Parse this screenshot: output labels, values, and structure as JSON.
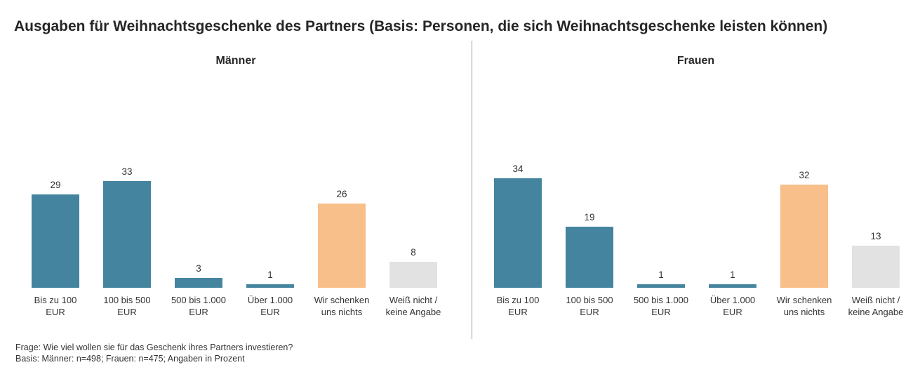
{
  "title": "Ausgaben für Weihnachtsgeschenke des Partners (Basis: Personen, die sich Weihnachtsgeschenke leisten können)",
  "footer": {
    "line1": "Frage: Wie viel wollen sie für das Geschenk ihres Partners investieren?",
    "line2": "Basis: Männer: n=498; Frauen: n=475; Angaben in Prozent"
  },
  "colors": {
    "bar_teal": "#44849E",
    "bar_orange": "#F8BF8A",
    "bar_gray": "#E2E2E2",
    "text": "#333333",
    "title_text": "#262626",
    "divider": "#9c9c9c"
  },
  "chart_data": {
    "type": "bar",
    "categories": [
      "Bis zu 100 EUR",
      "100 bis 500 EUR",
      "500 bis 1.000 EUR",
      "Über 1.000 EUR",
      "Wir schenken uns nichts",
      "Weiß nicht / keine Angabe"
    ],
    "category_labels": [
      "Bis zu 100\nEUR",
      "100 bis 500\nEUR",
      "500 bis 1.000\nEUR",
      "Über 1.000\nEUR",
      "Wir schenken\nuns nichts",
      "Weiß nicht /\nkeine Angabe"
    ],
    "series": [
      {
        "name": "Männer",
        "values": [
          29,
          33,
          3,
          1,
          26,
          8
        ]
      },
      {
        "name": "Frauen",
        "values": [
          34,
          19,
          1,
          1,
          32,
          13
        ]
      }
    ],
    "bar_colors": [
      "#44849E",
      "#44849E",
      "#44849E",
      "#44849E",
      "#F8BF8A",
      "#E2E2E2"
    ],
    "title": "Ausgaben für Weihnachtsgeschenke des Partners (Basis: Personen, die sich Weihnachtsgeschenke leisten können)",
    "xlabel": "",
    "ylabel": "Angaben in Prozent",
    "ylim": [
      0,
      40
    ],
    "grid": false,
    "legend": false,
    "value_labels_shown": true
  }
}
